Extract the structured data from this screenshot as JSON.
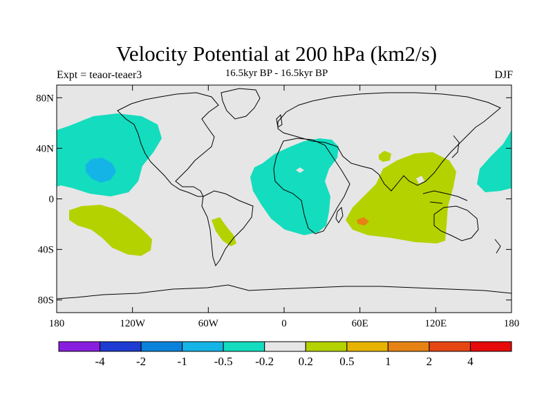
{
  "title": "Velocity Potential at 200 hPa (km2/s)",
  "subtitle": "16.5kyr BP - 16.5kyr BP",
  "left_string": "Expt = teaor-teaer3",
  "right_string": "DJF",
  "map": {
    "projection": "cylindrical equidistant",
    "lon_range": [
      -180,
      180
    ],
    "lat_range": [
      -90,
      90
    ],
    "lat_ticks": [
      {
        "value": 80,
        "label": "80N"
      },
      {
        "value": 40,
        "label": "40N"
      },
      {
        "value": 0,
        "label": "0"
      },
      {
        "value": -40,
        "label": "40S"
      },
      {
        "value": -80,
        "label": "80S"
      }
    ],
    "lon_ticks": [
      {
        "value": -180,
        "label": "180"
      },
      {
        "value": -120,
        "label": "120W"
      },
      {
        "value": -60,
        "label": "60W"
      },
      {
        "value": 0,
        "label": "0"
      },
      {
        "value": 60,
        "label": "60E"
      },
      {
        "value": 120,
        "label": "120E"
      },
      {
        "value": 180,
        "label": "180"
      }
    ]
  },
  "colorbar": {
    "labels": [
      "-4",
      "-2",
      "-1",
      "-0.5",
      "-0.2",
      "0.2",
      "0.5",
      "1",
      "2",
      "4"
    ],
    "colors": [
      "#8a1ee0",
      "#1e3cd2",
      "#0a82dc",
      "#14b4e6",
      "#14dcbe",
      "#e6e6e6",
      "#b4d200",
      "#e6b400",
      "#e68214",
      "#e64614",
      "#e60a0a"
    ]
  },
  "colors": {
    "background": "#e6e6e6",
    "negative_fill": "#14dcbe",
    "negative_strong_fill": "#14b4e6",
    "positive_fill": "#b4d200",
    "positive_strong_fill": "#e68214"
  }
}
